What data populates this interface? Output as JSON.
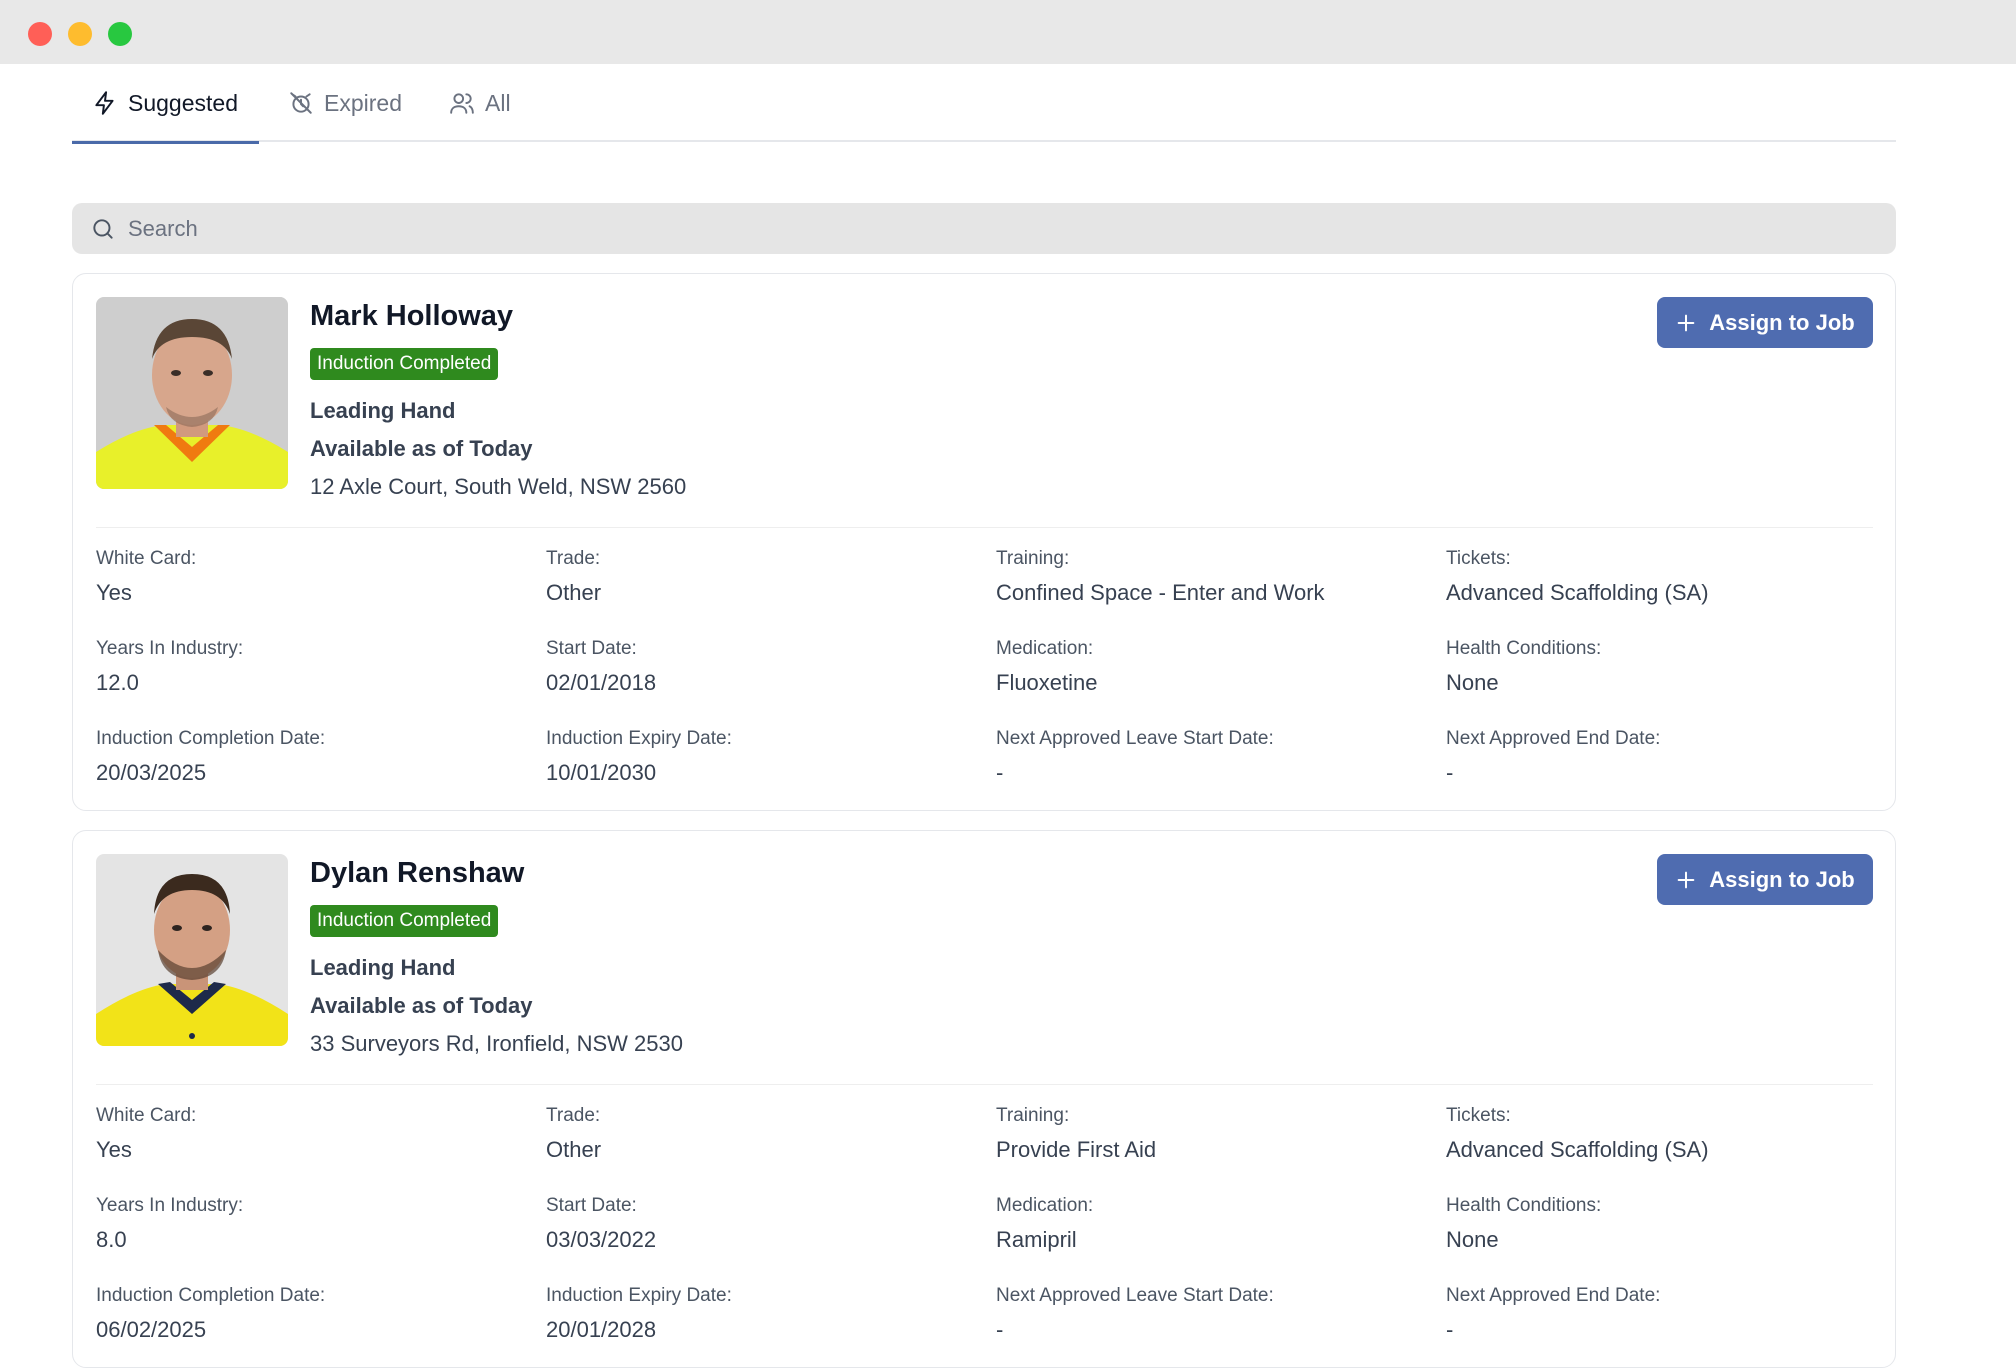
{
  "tabs": [
    {
      "label": "Suggested",
      "icon": "lightning-icon",
      "active": true
    },
    {
      "label": "Expired",
      "icon": "alarm-off-icon",
      "active": false
    },
    {
      "label": "All",
      "icon": "users-icon",
      "active": false
    }
  ],
  "search": {
    "placeholder": "Search",
    "value": ""
  },
  "colors": {
    "accent": "#4f6cb0",
    "badge": "#2f8a1e",
    "tab_underline": "#4a6aa9"
  },
  "workers": [
    {
      "name": "Mark Holloway",
      "badge": "Induction Completed",
      "role": "Leading Hand",
      "availability": "Available as of Today",
      "address": "12 Axle Court, South Weld, NSW 2560",
      "assign_label": "Assign to Job",
      "fields": [
        {
          "label": "White Card:",
          "value": "Yes"
        },
        {
          "label": "Trade:",
          "value": "Other"
        },
        {
          "label": "Training:",
          "value": "Confined Space - Enter and Work"
        },
        {
          "label": "Tickets:",
          "value": "Advanced Scaffolding (SA)"
        },
        {
          "label": "Years In Industry:",
          "value": "12.0"
        },
        {
          "label": "Start Date:",
          "value": "02/01/2018"
        },
        {
          "label": "Medication:",
          "value": "Fluoxetine"
        },
        {
          "label": "Health Conditions:",
          "value": "None"
        },
        {
          "label": "Induction Completion Date:",
          "value": "20/03/2025"
        },
        {
          "label": "Induction Expiry Date:",
          "value": "10/01/2030"
        },
        {
          "label": "Next Approved Leave Start Date:",
          "value": "-"
        },
        {
          "label": "Next Approved End Date:",
          "value": "-"
        }
      ]
    },
    {
      "name": "Dylan Renshaw",
      "badge": "Induction Completed",
      "role": "Leading Hand",
      "availability": "Available as of Today",
      "address": "33 Surveyors Rd, Ironfield, NSW 2530",
      "assign_label": "Assign to Job",
      "fields": [
        {
          "label": "White Card:",
          "value": "Yes"
        },
        {
          "label": "Trade:",
          "value": "Other"
        },
        {
          "label": "Training:",
          "value": "Provide First Aid"
        },
        {
          "label": "Tickets:",
          "value": "Advanced Scaffolding (SA)"
        },
        {
          "label": "Years In Industry:",
          "value": "8.0"
        },
        {
          "label": "Start Date:",
          "value": "03/03/2022"
        },
        {
          "label": "Medication:",
          "value": "Ramipril"
        },
        {
          "label": "Health Conditions:",
          "value": "None"
        },
        {
          "label": "Induction Completion Date:",
          "value": "06/02/2025"
        },
        {
          "label": "Induction Expiry Date:",
          "value": "20/01/2028"
        },
        {
          "label": "Next Approved Leave Start Date:",
          "value": "-"
        },
        {
          "label": "Next Approved End Date:",
          "value": "-"
        }
      ]
    }
  ]
}
